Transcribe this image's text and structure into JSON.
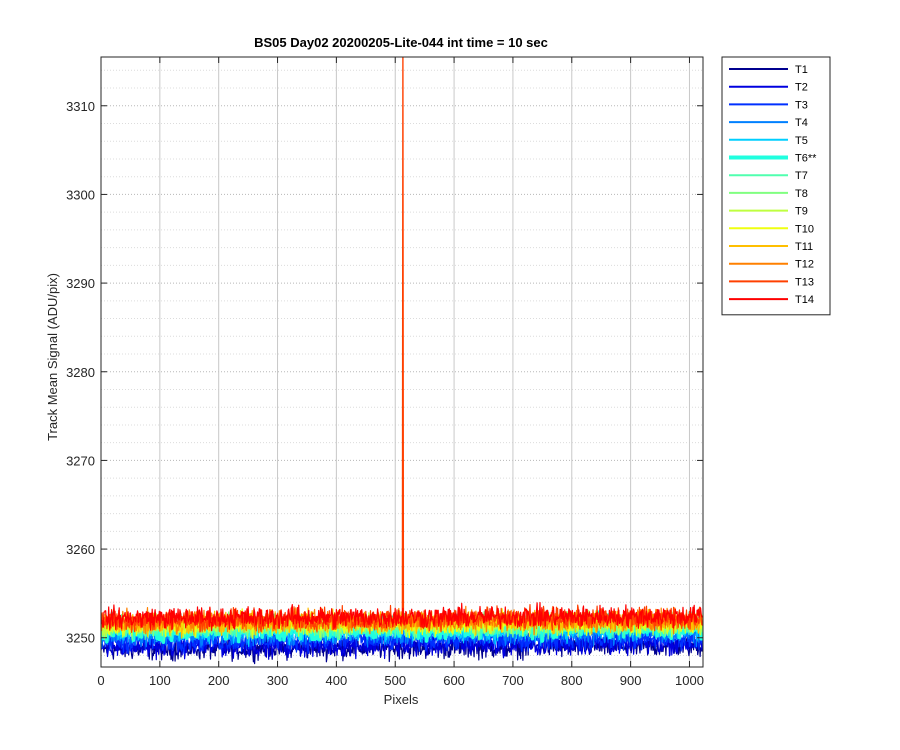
{
  "chart_data": {
    "type": "line",
    "title": "BS05 Day02 20200205-Lite-044 int time = 10 sec",
    "xlabel": "Pixels",
    "ylabel": "Track Mean Signal (ADU/pix)",
    "xlim": [
      0,
      1023
    ],
    "ylim": [
      3246.7,
      3315.5
    ],
    "x_ticks": [
      0,
      100,
      200,
      300,
      400,
      500,
      600,
      700,
      800,
      900,
      1000
    ],
    "y_ticks": [
      3250,
      3260,
      3270,
      3280,
      3290,
      3300,
      3310
    ],
    "grid": true,
    "minor_grid_y": true,
    "legend_position": "outside-right",
    "spike": {
      "series": "T13",
      "x": 513,
      "value_exceeds": 3315.5
    },
    "series": [
      {
        "name": "T1",
        "color": "#00008F",
        "mean": 3248.7,
        "noise": 1.0,
        "width": 1.2
      },
      {
        "name": "T2",
        "color": "#0000DF",
        "mean": 3249.0,
        "noise": 1.0,
        "width": 1.2
      },
      {
        "name": "T3",
        "color": "#0030FF",
        "mean": 3249.6,
        "noise": 1.0,
        "width": 1.2
      },
      {
        "name": "T4",
        "color": "#0080FF",
        "mean": 3250.2,
        "noise": 1.0,
        "width": 1.2
      },
      {
        "name": "T5",
        "color": "#00CFFF",
        "mean": 3250.6,
        "noise": 1.0,
        "width": 1.2
      },
      {
        "name": "T6**",
        "color": "#20FFDF",
        "mean": 3251.0,
        "noise": 1.0,
        "width": 3.5
      },
      {
        "name": "T7",
        "color": "#50FFAF",
        "mean": 3251.2,
        "noise": 1.0,
        "width": 1.2
      },
      {
        "name": "T8",
        "color": "#80FF80",
        "mean": 3251.3,
        "noise": 1.0,
        "width": 1.2
      },
      {
        "name": "T9",
        "color": "#BFFF40",
        "mean": 3251.4,
        "noise": 1.0,
        "width": 1.2
      },
      {
        "name": "T10",
        "color": "#EFFF10",
        "mean": 3251.5,
        "noise": 1.0,
        "width": 1.2
      },
      {
        "name": "T11",
        "color": "#FFBF00",
        "mean": 3251.6,
        "noise": 1.0,
        "width": 1.2
      },
      {
        "name": "T12",
        "color": "#FF8000",
        "mean": 3251.8,
        "noise": 1.0,
        "width": 1.2
      },
      {
        "name": "T13",
        "color": "#FF4000",
        "mean": 3252.0,
        "noise": 1.0,
        "width": 1.2
      },
      {
        "name": "T14",
        "color": "#FF0000",
        "mean": 3252.2,
        "noise": 1.0,
        "width": 1.2
      }
    ]
  }
}
